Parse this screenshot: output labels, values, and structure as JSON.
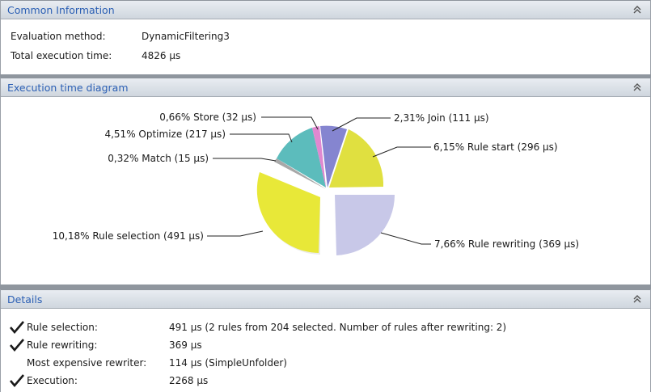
{
  "common": {
    "title": "Common Information",
    "rows": [
      {
        "label": "Evaluation method:",
        "value": "DynamicFiltering3"
      },
      {
        "label": "Total execution time:",
        "value": "4826 µs"
      }
    ]
  },
  "diagram": {
    "title": "Execution time diagram",
    "slices": [
      {
        "label": "2,31% Join (111 µs)",
        "color": "#8585d0"
      },
      {
        "label": "6,15% Rule start (296 µs)",
        "color": "#e0e040"
      },
      {
        "label": "7,66% Rule rewriting (369 µs)",
        "color": "#c2c2e6"
      },
      {
        "label": "10,18% Rule selection (491 µs)",
        "color": "#ececec"
      },
      {
        "label": "0,32% Match (15 µs)",
        "color": "#a8a8a8"
      },
      {
        "label": "4,51% Optimize (217 µs)",
        "color": "#5cbcbc"
      },
      {
        "label": "0,66% Store (32 µs)",
        "color": "#e088d0"
      }
    ]
  },
  "details": {
    "title": "Details",
    "rows": [
      {
        "check": true,
        "label": "Rule selection:",
        "value": "491 µs (2 rules from 204 selected. Number of rules after rewriting: 2)"
      },
      {
        "check": true,
        "label": "Rule rewriting:",
        "value": "369 µs"
      },
      {
        "check": false,
        "label": "Most expensive rewriter:",
        "value": "114 µs (SimpleUnfolder)"
      },
      {
        "check": true,
        "label": "Execution:",
        "value": "2268 µs"
      }
    ]
  },
  "colors": {
    "header_text": "#2b5fb4",
    "check": "#1a1a1a"
  }
}
